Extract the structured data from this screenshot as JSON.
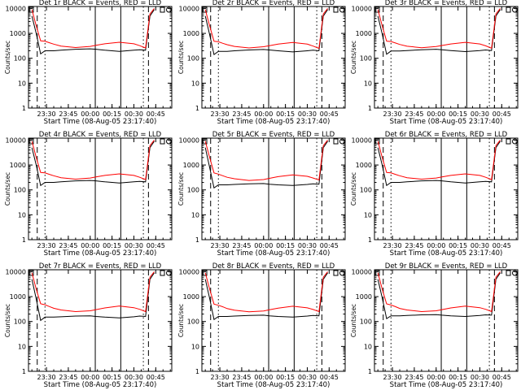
{
  "figure": {
    "colors": {
      "events": "#000000",
      "lld": "#ff0000",
      "frame": "#000000"
    },
    "xlabel": "Start Time (08-Aug-05 23:17:40)",
    "ylabel": "Counts/sec",
    "x_ticks": [
      "23:30",
      "23:45",
      "00:00",
      "00:15",
      "00:30",
      "00:45"
    ],
    "y_ticks": [
      "1",
      "10",
      "100",
      "1000",
      "10000"
    ]
  },
  "chart_data": [
    {
      "type": "line",
      "title": "Det 1r BLACK = Events, RED = LLD",
      "xlim": [
        "23:17:40",
        "00:56:00"
      ],
      "yscale": "log",
      "ylim": [
        1,
        12000
      ],
      "x": [
        "23:20",
        "23:23",
        "23:26",
        "23:29",
        "23:32",
        "23:35",
        "23:40",
        "23:50",
        "00:00",
        "00:04",
        "00:10",
        "00:20",
        "00:30",
        "00:34",
        "00:38",
        "00:41",
        "00:44"
      ],
      "series": [
        {
          "name": "BLACK = Events",
          "color": "#000000",
          "values": [
            5000,
            1000,
            150,
            200,
            200,
            200,
            210,
            230,
            240,
            230,
            210,
            190,
            210,
            220,
            210,
            5000,
            9000
          ]
        },
        {
          "name": "RED = LLD",
          "color": "#ff0000",
          "values": [
            9000,
            2000,
            500,
            480,
            420,
            370,
            310,
            270,
            300,
            330,
            380,
            440,
            380,
            320,
            260,
            6000,
            10000
          ]
        }
      ],
      "markers": {
        "dashed": [
          "23:23:40",
          "00:40:00"
        ],
        "dotted": [
          "23:29:00",
          "00:36:30"
        ],
        "solid": [
          "00:03:30",
          "00:21:00"
        ]
      }
    },
    {
      "type": "line",
      "title": "Det 2r BLACK = Events, RED = LLD",
      "xlim": [
        "23:17:40",
        "00:56:00"
      ],
      "yscale": "log",
      "ylim": [
        1,
        12000
      ],
      "x": [
        "23:20",
        "23:23",
        "23:26",
        "23:29",
        "23:32",
        "23:35",
        "23:40",
        "23:50",
        "00:00",
        "00:04",
        "00:10",
        "00:20",
        "00:30",
        "00:34",
        "00:38",
        "00:41",
        "00:44"
      ],
      "series": [
        {
          "name": "BLACK = Events",
          "color": "#000000",
          "values": [
            5000,
            900,
            140,
            190,
            190,
            190,
            200,
            215,
            225,
            215,
            200,
            180,
            200,
            210,
            200,
            5000,
            9000
          ]
        },
        {
          "name": "RED = LLD",
          "color": "#ff0000",
          "values": [
            9000,
            2000,
            480,
            460,
            400,
            350,
            300,
            260,
            290,
            320,
            370,
            430,
            370,
            310,
            250,
            6000,
            10000
          ]
        }
      ],
      "markers": {
        "dashed": [
          "23:23:40",
          "00:40:00"
        ],
        "dotted": [
          "23:29:00",
          "00:36:30"
        ],
        "solid": [
          "00:03:30",
          "00:21:00"
        ]
      }
    },
    {
      "type": "line",
      "title": "Det 3r BLACK = Events, RED = LLD",
      "xlim": [
        "23:17:40",
        "00:56:00"
      ],
      "yscale": "log",
      "ylim": [
        1,
        12000
      ],
      "x": [
        "23:20",
        "23:23",
        "23:26",
        "23:29",
        "23:32",
        "23:35",
        "23:40",
        "23:50",
        "00:00",
        "00:04",
        "00:10",
        "00:20",
        "00:30",
        "00:34",
        "00:38",
        "00:41",
        "00:44"
      ],
      "series": [
        {
          "name": "BLACK = Events",
          "color": "#000000",
          "values": [
            5000,
            950,
            145,
            195,
            195,
            195,
            205,
            220,
            230,
            220,
            205,
            185,
            205,
            215,
            205,
            5000,
            9000
          ]
        },
        {
          "name": "RED = LLD",
          "color": "#ff0000",
          "values": [
            9000,
            2000,
            490,
            470,
            410,
            360,
            305,
            265,
            295,
            325,
            375,
            435,
            375,
            315,
            255,
            6000,
            10000
          ]
        }
      ],
      "markers": {
        "dashed": [
          "23:23:40",
          "00:40:00"
        ],
        "dotted": [
          "23:29:00",
          "00:36:30"
        ],
        "solid": [
          "00:03:30",
          "00:21:00"
        ]
      }
    },
    {
      "type": "line",
      "title": "Det 4r BLACK = Events, RED = LLD",
      "xlim": [
        "23:17:40",
        "00:56:00"
      ],
      "yscale": "log",
      "ylim": [
        1,
        12000
      ],
      "x": [
        "23:20",
        "23:23",
        "23:26",
        "23:29",
        "23:32",
        "23:35",
        "23:40",
        "23:50",
        "00:00",
        "00:04",
        "00:10",
        "00:20",
        "00:30",
        "00:34",
        "00:38",
        "00:41",
        "00:44"
      ],
      "series": [
        {
          "name": "BLACK = Events",
          "color": "#000000",
          "values": [
            5000,
            1000,
            150,
            200,
            200,
            200,
            210,
            230,
            240,
            230,
            210,
            190,
            210,
            220,
            210,
            5000,
            9000
          ]
        },
        {
          "name": "RED = LLD",
          "color": "#ff0000",
          "values": [
            9000,
            2000,
            500,
            480,
            420,
            370,
            310,
            270,
            300,
            330,
            380,
            440,
            380,
            320,
            260,
            6000,
            10000
          ]
        }
      ],
      "markers": {
        "dashed": [
          "23:23:40",
          "00:40:00"
        ],
        "dotted": [
          "23:29:00",
          "00:36:30"
        ],
        "solid": [
          "00:03:30",
          "00:21:00"
        ]
      }
    },
    {
      "type": "line",
      "title": "Det 5r BLACK = Events, RED = LLD",
      "xlim": [
        "23:17:40",
        "00:56:00"
      ],
      "yscale": "log",
      "ylim": [
        1,
        12000
      ],
      "x": [
        "23:20",
        "23:23",
        "23:26",
        "23:29",
        "23:32",
        "23:35",
        "23:40",
        "23:50",
        "00:00",
        "00:04",
        "00:10",
        "00:20",
        "00:30",
        "00:34",
        "00:38",
        "00:41",
        "00:44"
      ],
      "series": [
        {
          "name": "BLACK = Events",
          "color": "#000000",
          "values": [
            5000,
            800,
            120,
            160,
            160,
            160,
            165,
            175,
            180,
            170,
            160,
            150,
            165,
            175,
            170,
            5000,
            9000
          ]
        },
        {
          "name": "RED = LLD",
          "color": "#ff0000",
          "values": [
            9000,
            2000,
            480,
            430,
            370,
            320,
            280,
            240,
            260,
            290,
            340,
            400,
            350,
            300,
            250,
            6000,
            10000
          ]
        }
      ],
      "markers": {
        "dashed": [
          "23:23:40",
          "00:40:00"
        ],
        "dotted": [
          "23:29:00",
          "00:36:30"
        ],
        "solid": [
          "00:03:30",
          "00:21:00"
        ]
      }
    },
    {
      "type": "line",
      "title": "Det 6r BLACK = Events, RED = LLD",
      "xlim": [
        "23:17:40",
        "00:56:00"
      ],
      "yscale": "log",
      "ylim": [
        1,
        12000
      ],
      "x": [
        "23:20",
        "23:23",
        "23:26",
        "23:29",
        "23:32",
        "23:35",
        "23:40",
        "23:50",
        "00:00",
        "00:04",
        "00:10",
        "00:20",
        "00:30",
        "00:34",
        "00:38",
        "00:41",
        "00:44"
      ],
      "series": [
        {
          "name": "BLACK = Events",
          "color": "#000000",
          "values": [
            5000,
            1000,
            150,
            200,
            200,
            200,
            210,
            230,
            240,
            230,
            210,
            190,
            210,
            220,
            210,
            5000,
            9000
          ]
        },
        {
          "name": "RED = LLD",
          "color": "#ff0000",
          "values": [
            9000,
            2000,
            500,
            480,
            420,
            370,
            310,
            270,
            300,
            330,
            380,
            440,
            380,
            320,
            260,
            6000,
            10000
          ]
        }
      ],
      "markers": {
        "dashed": [
          "23:23:40",
          "00:40:00"
        ],
        "dotted": [
          "23:29:00",
          "00:36:30"
        ],
        "solid": [
          "00:03:30",
          "00:21:00"
        ]
      }
    },
    {
      "type": "line",
      "title": "Det 7r BLACK = Events, RED = LLD",
      "xlim": [
        "23:17:40",
        "00:56:00"
      ],
      "yscale": "log",
      "ylim": [
        1,
        12000
      ],
      "x": [
        "23:20",
        "23:23",
        "23:26",
        "23:29",
        "23:32",
        "23:35",
        "23:40",
        "23:50",
        "00:00",
        "00:04",
        "00:10",
        "00:20",
        "00:30",
        "00:34",
        "00:38",
        "00:41",
        "00:44"
      ],
      "series": [
        {
          "name": "BLACK = Events",
          "color": "#000000",
          "values": [
            5000,
            800,
            110,
            150,
            150,
            150,
            155,
            165,
            170,
            160,
            150,
            140,
            155,
            165,
            160,
            5000,
            9000
          ]
        },
        {
          "name": "RED = LLD",
          "color": "#ff0000",
          "values": [
            9000,
            2000,
            520,
            470,
            400,
            340,
            290,
            250,
            270,
            300,
            350,
            420,
            360,
            310,
            250,
            6000,
            10000
          ]
        }
      ],
      "markers": {
        "dashed": [
          "23:23:40",
          "00:40:00"
        ],
        "dotted": [
          "23:29:00",
          "00:36:30"
        ],
        "solid": [
          "00:03:30",
          "00:21:00"
        ]
      }
    },
    {
      "type": "line",
      "title": "Det 8r BLACK = Events, RED = LLD",
      "xlim": [
        "23:17:40",
        "00:56:00"
      ],
      "yscale": "log",
      "ylim": [
        1,
        12000
      ],
      "x": [
        "23:20",
        "23:23",
        "23:26",
        "23:29",
        "23:32",
        "23:35",
        "23:40",
        "23:50",
        "00:00",
        "00:04",
        "00:10",
        "00:20",
        "00:30",
        "00:34",
        "00:38",
        "00:41",
        "00:44"
      ],
      "series": [
        {
          "name": "BLACK = Events",
          "color": "#000000",
          "values": [
            5000,
            850,
            120,
            160,
            160,
            160,
            165,
            175,
            180,
            170,
            160,
            150,
            165,
            175,
            170,
            5000,
            9000
          ]
        },
        {
          "name": "RED = LLD",
          "color": "#ff0000",
          "values": [
            9000,
            2000,
            500,
            450,
            390,
            330,
            285,
            245,
            265,
            295,
            345,
            410,
            355,
            305,
            250,
            6000,
            10000
          ]
        }
      ],
      "markers": {
        "dashed": [
          "23:23:40",
          "00:40:00"
        ],
        "dotted": [
          "23:29:00",
          "00:36:30"
        ],
        "solid": [
          "00:03:30",
          "00:21:00"
        ]
      }
    },
    {
      "type": "line",
      "title": "Det 9r BLACK = Events, RED = LLD",
      "xlim": [
        "23:17:40",
        "00:56:00"
      ],
      "yscale": "log",
      "ylim": [
        1,
        12000
      ],
      "x": [
        "23:20",
        "23:23",
        "23:26",
        "23:29",
        "23:32",
        "23:35",
        "23:40",
        "23:50",
        "00:00",
        "00:04",
        "00:10",
        "00:20",
        "00:30",
        "00:34",
        "00:38",
        "00:41",
        "00:44"
      ],
      "series": [
        {
          "name": "BLACK = Events",
          "color": "#000000",
          "values": [
            5000,
            900,
            130,
            170,
            170,
            170,
            175,
            185,
            190,
            180,
            170,
            160,
            175,
            185,
            180,
            5000,
            9000
          ]
        },
        {
          "name": "RED = LLD",
          "color": "#ff0000",
          "values": [
            9000,
            2000,
            510,
            460,
            395,
            335,
            290,
            250,
            270,
            300,
            350,
            415,
            360,
            310,
            252,
            6000,
            10000
          ]
        }
      ],
      "markers": {
        "dashed": [
          "23:23:40",
          "00:40:00"
        ],
        "dotted": [
          "23:29:00",
          "00:36:30"
        ],
        "solid": [
          "00:03:30",
          "00:21:00"
        ]
      }
    }
  ]
}
